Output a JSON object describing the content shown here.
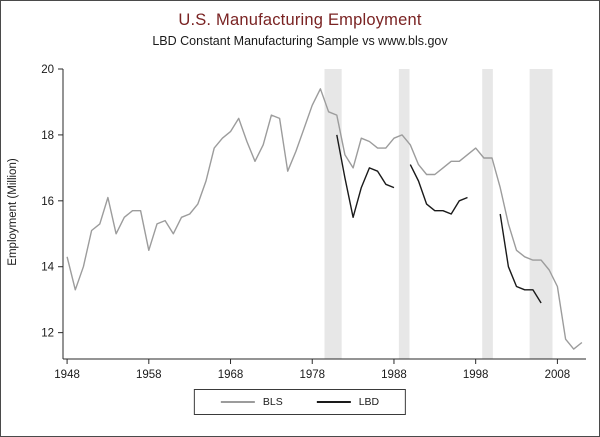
{
  "figure": {
    "title": "U.S. Manufacturing Employment",
    "subtitle": "LBD Constant Manufacturing Sample vs www.bls.gov",
    "ylabel": "Employment (Million)",
    "title_color": "#7a2323",
    "band_color": "#e7e7e7",
    "axis_color": "#2a2a2a"
  },
  "chart_data": {
    "type": "line",
    "title": "U.S. Manufacturing Employment",
    "subtitle": "LBD Constant Manufacturing Sample vs www.bls.gov",
    "xlabel": "",
    "ylabel": "Employment (Million)",
    "xlim": [
      1947.5,
      2011.5
    ],
    "ylim": [
      11.2,
      20
    ],
    "xticks": [
      1948,
      1958,
      1968,
      1978,
      1988,
      1998,
      2008
    ],
    "yticks": [
      12,
      14,
      16,
      18,
      20
    ],
    "grid": false,
    "legend_position": "bottom-center",
    "highlight_bands": [
      [
        1979.5,
        1981.6
      ],
      [
        1988.6,
        1989.9
      ],
      [
        1998.8,
        2000.1
      ],
      [
        2004.6,
        2007.4
      ]
    ],
    "series": [
      {
        "name": "BLS",
        "color": "#9c9c9c",
        "x": [
          1948,
          1949,
          1950,
          1951,
          1952,
          1953,
          1954,
          1955,
          1956,
          1957,
          1958,
          1959,
          1960,
          1961,
          1962,
          1963,
          1964,
          1965,
          1966,
          1967,
          1968,
          1969,
          1970,
          1971,
          1972,
          1973,
          1974,
          1975,
          1976,
          1977,
          1978,
          1979,
          1980,
          1981,
          1982,
          1983,
          1984,
          1985,
          1986,
          1987,
          1988,
          1989,
          1990,
          1991,
          1992,
          1993,
          1994,
          1995,
          1996,
          1997,
          1998,
          1999,
          2000,
          2001,
          2002,
          2003,
          2004,
          2005,
          2006,
          2007,
          2008,
          2009,
          2010,
          2011
        ],
        "y": [
          14.3,
          13.3,
          14.0,
          15.1,
          15.3,
          16.1,
          15.0,
          15.5,
          15.7,
          15.7,
          14.5,
          15.3,
          15.4,
          15.0,
          15.5,
          15.6,
          15.9,
          16.6,
          17.6,
          17.9,
          18.1,
          18.5,
          17.8,
          17.2,
          17.7,
          18.6,
          18.5,
          16.9,
          17.5,
          18.2,
          18.9,
          19.4,
          18.7,
          18.6,
          17.4,
          17.0,
          17.9,
          17.8,
          17.6,
          17.6,
          17.9,
          18.0,
          17.7,
          17.1,
          16.8,
          16.8,
          17.0,
          17.2,
          17.2,
          17.4,
          17.6,
          17.3,
          17.3,
          16.4,
          15.3,
          14.5,
          14.3,
          14.2,
          14.2,
          13.9,
          13.4,
          11.8,
          11.5,
          11.7
        ]
      },
      {
        "name": "LBD",
        "color": "#1a1a1a",
        "x": [
          1981,
          1982,
          1983,
          1984,
          1985,
          1986,
          1987,
          1988,
          1989,
          1990,
          1991,
          1992,
          1993,
          1994,
          1995,
          1996,
          1997,
          1998,
          1999,
          2000,
          2001,
          2002,
          2003,
          2004,
          2005,
          2006
        ],
        "y": [
          18.0,
          16.7,
          15.5,
          16.4,
          17.0,
          16.9,
          16.5,
          16.4,
          null,
          17.1,
          16.6,
          15.9,
          15.7,
          15.7,
          15.6,
          16.0,
          16.1,
          null,
          null,
          null,
          15.6,
          14.0,
          13.4,
          13.3,
          13.3,
          12.9
        ]
      }
    ]
  },
  "legend": {
    "items": [
      {
        "label": "BLS"
      },
      {
        "label": "LBD"
      }
    ]
  }
}
